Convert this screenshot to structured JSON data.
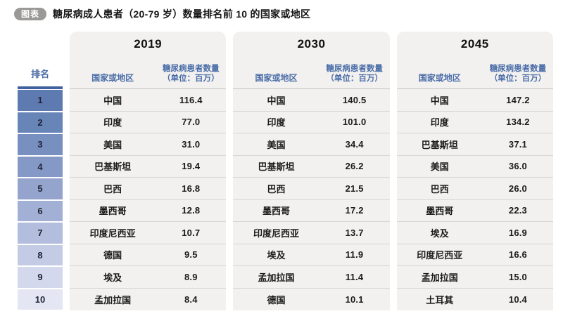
{
  "title": {
    "badge": "图表",
    "text": "糖尿病成人患者（20-79 岁）数量排名前 10 的国家或地区"
  },
  "table": {
    "rank_header": "排名",
    "ranks": [
      1,
      2,
      3,
      4,
      5,
      6,
      7,
      8,
      9,
      10
    ],
    "column_headers": {
      "country": "国家或地区",
      "value_line1": "糖尿病患者数量",
      "value_line2": "（单位：百万）"
    },
    "years": [
      {
        "year": "2019",
        "rows": [
          {
            "country": "中国",
            "value": "116.4"
          },
          {
            "country": "印度",
            "value": "77.0"
          },
          {
            "country": "美国",
            "value": "31.0"
          },
          {
            "country": "巴基斯坦",
            "value": "19.4"
          },
          {
            "country": "巴西",
            "value": "16.8"
          },
          {
            "country": "墨西哥",
            "value": "12.8"
          },
          {
            "country": "印度尼西亚",
            "value": "10.7"
          },
          {
            "country": "德国",
            "value": "9.5"
          },
          {
            "country": "埃及",
            "value": "8.9"
          },
          {
            "country": "孟加拉国",
            "value": "8.4"
          }
        ]
      },
      {
        "year": "2030",
        "rows": [
          {
            "country": "中国",
            "value": "140.5"
          },
          {
            "country": "印度",
            "value": "101.0"
          },
          {
            "country": "美国",
            "value": "34.4"
          },
          {
            "country": "巴基斯坦",
            "value": "26.2"
          },
          {
            "country": "巴西",
            "value": "21.5"
          },
          {
            "country": "墨西哥",
            "value": "17.2"
          },
          {
            "country": "印度尼西亚",
            "value": "13.7"
          },
          {
            "country": "埃及",
            "value": "11.9"
          },
          {
            "country": "孟加拉国",
            "value": "11.4"
          },
          {
            "country": "德国",
            "value": "10.1"
          }
        ]
      },
      {
        "year": "2045",
        "rows": [
          {
            "country": "中国",
            "value": "147.2"
          },
          {
            "country": "印度",
            "value": "134.2"
          },
          {
            "country": "巴基斯坦",
            "value": "37.1"
          },
          {
            "country": "美国",
            "value": "36.0"
          },
          {
            "country": "巴西",
            "value": "26.0"
          },
          {
            "country": "墨西哥",
            "value": "22.3"
          },
          {
            "country": "埃及",
            "value": "16.9"
          },
          {
            "country": "印度尼西亚",
            "value": "16.6"
          },
          {
            "country": "孟加拉国",
            "value": "15.0"
          },
          {
            "country": "土耳其",
            "value": "10.4"
          }
        ]
      }
    ]
  },
  "colors": {
    "accent_blue": "#4a6da8",
    "rank_underline": "#41609f",
    "panel_bg": "#f2f1ef",
    "badge_bg": "#9b9998",
    "rank_scale": [
      "#5e7bb1",
      "#6885b8",
      "#7790bf",
      "#8599c6",
      "#94a4cd",
      "#a3b0d5",
      "#b3bddd",
      "#c4cbe5",
      "#d4d8ec",
      "#e4e7f3"
    ]
  },
  "chart_data": {
    "type": "table",
    "title": "糖尿病成人患者（20-79 岁）数量排名前 10 的国家或地区",
    "unit": "百万",
    "value_label": "糖尿病患者数量（单位：百万）",
    "rank_range": [
      1,
      10
    ],
    "groups": [
      "2019",
      "2030",
      "2045"
    ],
    "series": [
      {
        "year": "2019",
        "rows": [
          [
            "中国",
            116.4
          ],
          [
            "印度",
            77.0
          ],
          [
            "美国",
            31.0
          ],
          [
            "巴基斯坦",
            19.4
          ],
          [
            "巴西",
            16.8
          ],
          [
            "墨西哥",
            12.8
          ],
          [
            "印度尼西亚",
            10.7
          ],
          [
            "德国",
            9.5
          ],
          [
            "埃及",
            8.9
          ],
          [
            "孟加拉国",
            8.4
          ]
        ]
      },
      {
        "year": "2030",
        "rows": [
          [
            "中国",
            140.5
          ],
          [
            "印度",
            101.0
          ],
          [
            "美国",
            34.4
          ],
          [
            "巴基斯坦",
            26.2
          ],
          [
            "巴西",
            21.5
          ],
          [
            "墨西哥",
            17.2
          ],
          [
            "印度尼西亚",
            13.7
          ],
          [
            "埃及",
            11.9
          ],
          [
            "孟加拉国",
            11.4
          ],
          [
            "德国",
            10.1
          ]
        ]
      },
      {
        "year": "2045",
        "rows": [
          [
            "中国",
            147.2
          ],
          [
            "印度",
            134.2
          ],
          [
            "巴基斯坦",
            37.1
          ],
          [
            "美国",
            36.0
          ],
          [
            "巴西",
            26.0
          ],
          [
            "墨西哥",
            22.3
          ],
          [
            "埃及",
            16.9
          ],
          [
            "印度尼西亚",
            16.6
          ],
          [
            "孟加拉国",
            15.0
          ],
          [
            "土耳其",
            10.4
          ]
        ]
      }
    ]
  }
}
